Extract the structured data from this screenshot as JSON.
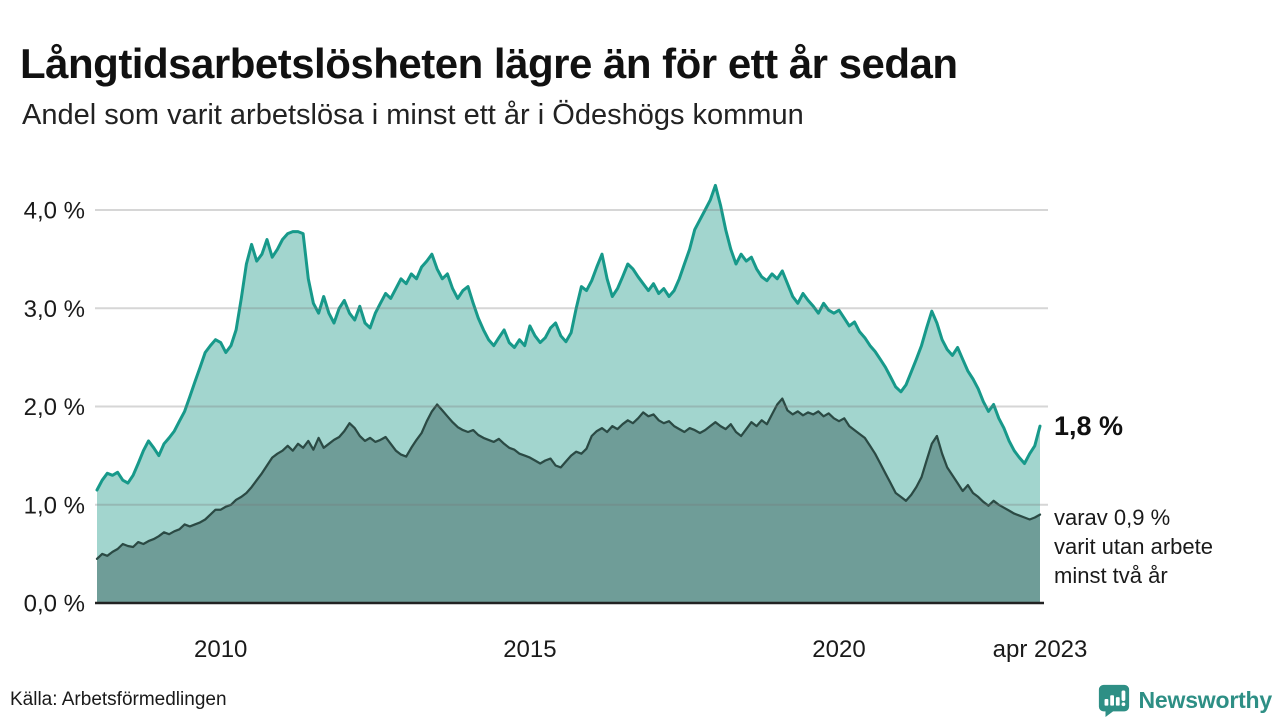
{
  "chart_data": {
    "type": "area",
    "title": "Långtidsarbetslösheten lägre än för ett år sedan",
    "subtitle": "Andel som varit arbetslösa i minst ett år i Ödeshögs kommun",
    "xlabel": "",
    "ylabel": "",
    "x_start": 2008.0,
    "x_end": 2023.25,
    "points_per_year": 12,
    "ylim": [
      0,
      4.3
    ],
    "grid": true,
    "legend_position": "none",
    "y_ticks": [
      {
        "label": "0,0 %",
        "value": 0
      },
      {
        "label": "1,0 %",
        "value": 1
      },
      {
        "label": "2,0 %",
        "value": 2
      },
      {
        "label": "3,0 %",
        "value": 3
      },
      {
        "label": "4,0 %",
        "value": 4
      }
    ],
    "x_ticks": [
      {
        "label": "2010",
        "value": 2010
      },
      {
        "label": "2015",
        "value": 2015
      },
      {
        "label": "2020",
        "value": 2020
      },
      {
        "label": "apr 2023",
        "value": 2023.25
      }
    ],
    "series": [
      {
        "name": "Arbetslösa minst ett år",
        "line_color": "#17998a",
        "fill_color": "#a2d5ce",
        "line_width": 3,
        "values": [
          1.15,
          1.25,
          1.32,
          1.3,
          1.33,
          1.25,
          1.22,
          1.3,
          1.42,
          1.55,
          1.65,
          1.58,
          1.5,
          1.62,
          1.68,
          1.75,
          1.85,
          1.95,
          2.1,
          2.25,
          2.4,
          2.55,
          2.62,
          2.68,
          2.65,
          2.55,
          2.62,
          2.78,
          3.1,
          3.45,
          3.65,
          3.48,
          3.55,
          3.7,
          3.52,
          3.6,
          3.7,
          3.76,
          3.78,
          3.78,
          3.76,
          3.3,
          3.05,
          2.95,
          3.12,
          2.95,
          2.85,
          3.0,
          3.08,
          2.95,
          2.88,
          3.02,
          2.85,
          2.8,
          2.95,
          3.05,
          3.15,
          3.1,
          3.2,
          3.3,
          3.25,
          3.35,
          3.3,
          3.42,
          3.48,
          3.55,
          3.4,
          3.3,
          3.35,
          3.2,
          3.1,
          3.18,
          3.22,
          3.05,
          2.9,
          2.78,
          2.68,
          2.62,
          2.7,
          2.78,
          2.65,
          2.6,
          2.68,
          2.62,
          2.82,
          2.72,
          2.65,
          2.7,
          2.8,
          2.85,
          2.72,
          2.66,
          2.75,
          3.0,
          3.22,
          3.18,
          3.28,
          3.42,
          3.55,
          3.3,
          3.12,
          3.2,
          3.32,
          3.45,
          3.4,
          3.32,
          3.25,
          3.18,
          3.25,
          3.15,
          3.2,
          3.12,
          3.18,
          3.3,
          3.45,
          3.6,
          3.8,
          3.9,
          4.0,
          4.1,
          4.25,
          4.05,
          3.8,
          3.6,
          3.45,
          3.55,
          3.48,
          3.52,
          3.4,
          3.32,
          3.28,
          3.35,
          3.3,
          3.38,
          3.25,
          3.12,
          3.05,
          3.15,
          3.08,
          3.02,
          2.95,
          3.05,
          2.98,
          2.95,
          2.98,
          2.9,
          2.82,
          2.86,
          2.76,
          2.7,
          2.62,
          2.56,
          2.48,
          2.4,
          2.3,
          2.2,
          2.15,
          2.22,
          2.35,
          2.48,
          2.62,
          2.8,
          2.97,
          2.85,
          2.68,
          2.58,
          2.52,
          2.6,
          2.48,
          2.36,
          2.28,
          2.18,
          2.05,
          1.95,
          2.02,
          1.88,
          1.78,
          1.65,
          1.55,
          1.48,
          1.42,
          1.52,
          1.6,
          1.8
        ]
      },
      {
        "name": "Arbetslösa minst två år",
        "line_color": "#2b4a44",
        "fill_color": "#6f9d98",
        "line_width": 2.25,
        "values": [
          0.45,
          0.5,
          0.48,
          0.52,
          0.55,
          0.6,
          0.58,
          0.57,
          0.62,
          0.6,
          0.63,
          0.65,
          0.68,
          0.72,
          0.7,
          0.73,
          0.75,
          0.8,
          0.78,
          0.8,
          0.82,
          0.85,
          0.9,
          0.95,
          0.95,
          0.98,
          1.0,
          1.05,
          1.08,
          1.12,
          1.18,
          1.25,
          1.32,
          1.4,
          1.48,
          1.52,
          1.55,
          1.6,
          1.55,
          1.62,
          1.58,
          1.65,
          1.56,
          1.68,
          1.58,
          1.62,
          1.66,
          1.69,
          1.75,
          1.83,
          1.78,
          1.7,
          1.65,
          1.68,
          1.64,
          1.66,
          1.69,
          1.62,
          1.55,
          1.51,
          1.49,
          1.58,
          1.66,
          1.73,
          1.85,
          1.95,
          2.02,
          1.96,
          1.9,
          1.84,
          1.79,
          1.76,
          1.74,
          1.76,
          1.71,
          1.68,
          1.66,
          1.64,
          1.67,
          1.62,
          1.58,
          1.56,
          1.52,
          1.5,
          1.48,
          1.45,
          1.42,
          1.45,
          1.47,
          1.4,
          1.38,
          1.44,
          1.5,
          1.54,
          1.52,
          1.57,
          1.7,
          1.75,
          1.78,
          1.74,
          1.8,
          1.77,
          1.82,
          1.86,
          1.83,
          1.88,
          1.94,
          1.9,
          1.92,
          1.86,
          1.83,
          1.85,
          1.8,
          1.77,
          1.74,
          1.78,
          1.76,
          1.73,
          1.76,
          1.8,
          1.84,
          1.8,
          1.77,
          1.82,
          1.74,
          1.7,
          1.77,
          1.84,
          1.8,
          1.86,
          1.82,
          1.92,
          2.02,
          2.08,
          1.96,
          1.92,
          1.95,
          1.91,
          1.94,
          1.92,
          1.95,
          1.9,
          1.93,
          1.88,
          1.85,
          1.88,
          1.8,
          1.76,
          1.72,
          1.68,
          1.6,
          1.52,
          1.42,
          1.32,
          1.22,
          1.12,
          1.08,
          1.04,
          1.1,
          1.18,
          1.28,
          1.45,
          1.62,
          1.7,
          1.52,
          1.38,
          1.3,
          1.22,
          1.14,
          1.2,
          1.12,
          1.08,
          1.03,
          0.99,
          1.04,
          1.0,
          0.97,
          0.94,
          0.91,
          0.89,
          0.87,
          0.85,
          0.87,
          0.9
        ]
      }
    ],
    "annotations": {
      "current_value": "1,8 %",
      "sub_label": "varav 0,9 %\nvarit utan arbete\nminst två år"
    }
  },
  "footer": {
    "source": "Källa: Arbetsförmedlingen",
    "brand": "Newsworthy"
  },
  "colors": {
    "grid": "#dbdbdb",
    "baseline": "#222222",
    "text": "#1a1a1a",
    "brand_teal": "#2e8f85"
  }
}
